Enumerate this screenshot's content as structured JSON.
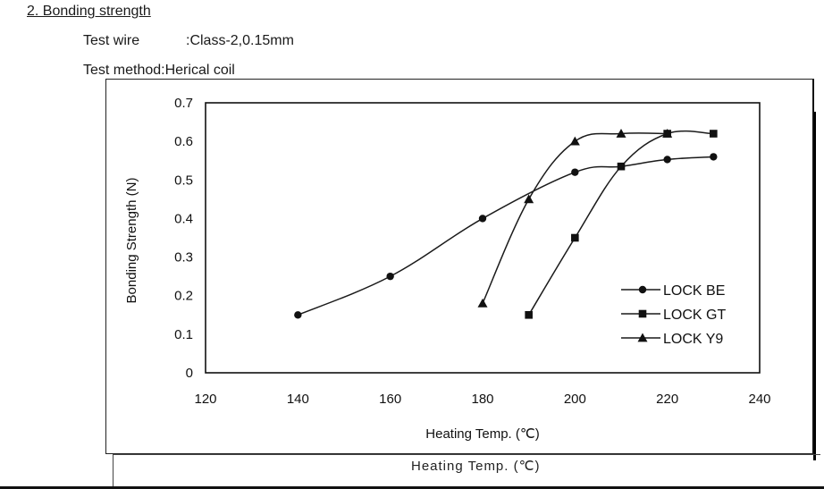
{
  "header": {
    "section_title": "2. Bonding strength",
    "test_wire_label": "Test wire",
    "test_wire_value": ":Class-2,0.15mm",
    "test_method": "Test method:Herical coil"
  },
  "background_xlabel": "Heating Temp. (℃)",
  "chart_data": {
    "type": "line",
    "title": "",
    "xlabel": "Heating Temp. (℃)",
    "ylabel": "Bonding Strength (N)",
    "xlim": [
      120,
      240
    ],
    "ylim": [
      0,
      0.7
    ],
    "xticks": [
      "120",
      "140",
      "160",
      "180",
      "200",
      "220",
      "240"
    ],
    "yticks": [
      "0",
      "0.1",
      "0.2",
      "0.3",
      "0.4",
      "0.5",
      "0.6",
      "0.7"
    ],
    "grid": false,
    "legend_position": "lower-right",
    "series": [
      {
        "name": "LOCK BE",
        "marker": "circle",
        "x": [
          140,
          160,
          180,
          200,
          210,
          220,
          230
        ],
        "y": [
          0.15,
          0.25,
          0.4,
          0.52,
          0.535,
          0.553,
          0.56
        ]
      },
      {
        "name": "LOCK GT",
        "marker": "square",
        "x": [
          190,
          200,
          210,
          220,
          230
        ],
        "y": [
          0.15,
          0.35,
          0.535,
          0.62,
          0.62
        ]
      },
      {
        "name": "LOCK Y9",
        "marker": "triangle",
        "x": [
          180,
          190,
          200,
          210,
          220
        ],
        "y": [
          0.18,
          0.45,
          0.6,
          0.62,
          0.62
        ]
      }
    ]
  }
}
